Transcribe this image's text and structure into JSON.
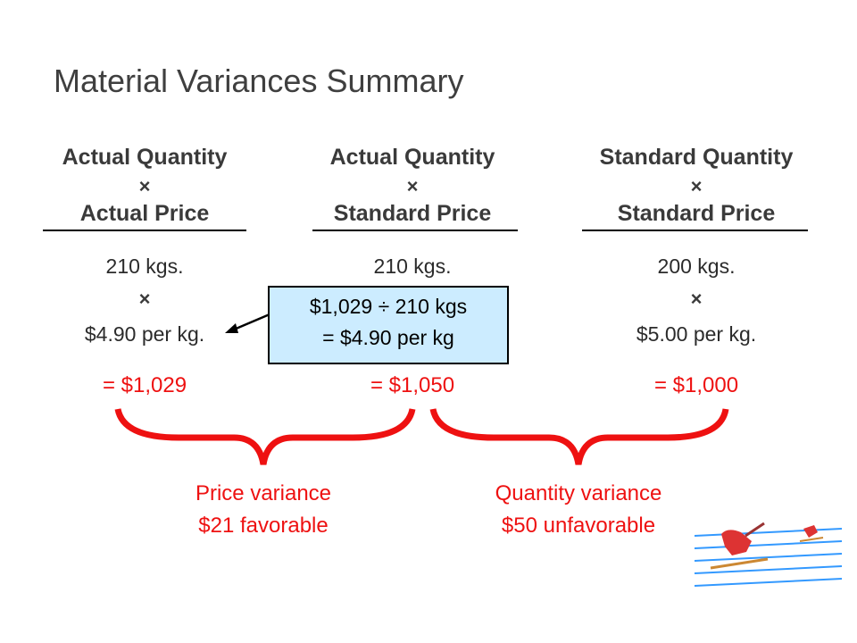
{
  "title": "Material Variances Summary",
  "columns": [
    {
      "header_top": "Actual Quantity",
      "header_operator": "×",
      "header_bottom": "Actual Price",
      "quantity": "210 kgs.",
      "operator": "×",
      "price": "$4.90 per kg.",
      "total": "= $1,029"
    },
    {
      "header_top": "Actual Quantity",
      "header_operator": "×",
      "header_bottom": "Standard Price",
      "quantity": "210 kgs.",
      "total": "= $1,050"
    },
    {
      "header_top": "Standard Quantity",
      "header_operator": "×",
      "header_bottom": "Standard Price",
      "quantity": "200 kgs.",
      "operator": "×",
      "price": "$5.00 per kg.",
      "total": "= $1,000"
    }
  ],
  "callout": {
    "line1": "$1,029 ÷ 210 kgs",
    "line2": "= $4.90 per kg"
  },
  "variances": [
    {
      "name": "Price variance",
      "amount": "$21 favorable"
    },
    {
      "name": "Quantity variance",
      "amount": "$50 unfavorable"
    }
  ]
}
